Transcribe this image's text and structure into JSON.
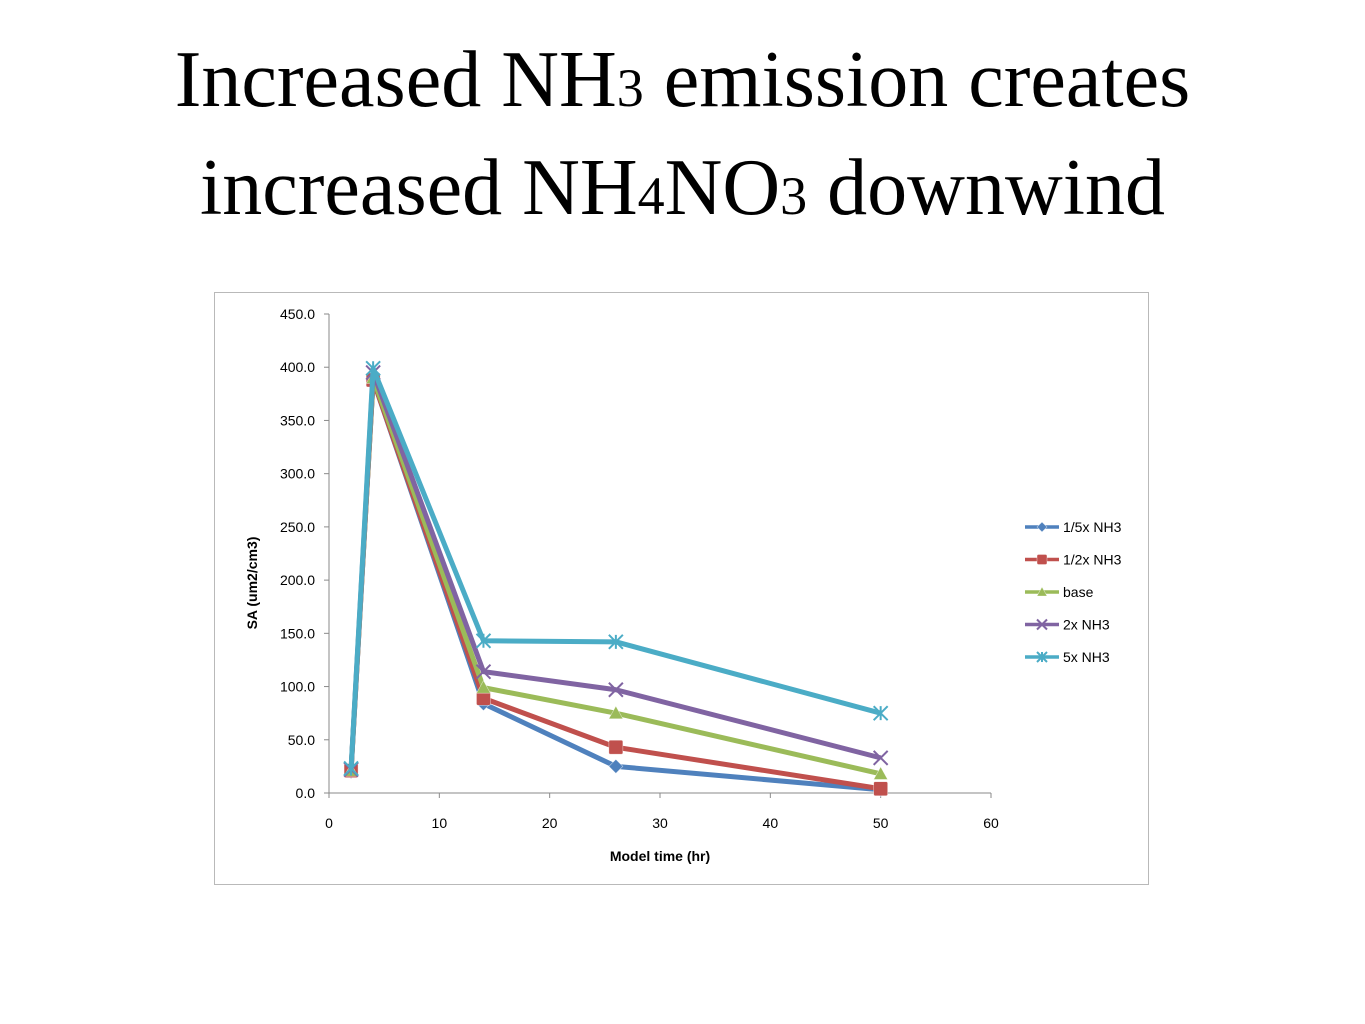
{
  "slide": {
    "title_line1": {
      "pre": "Increased NH",
      "sub1": "3",
      "post": " emission creates"
    },
    "title_line2": {
      "pre": "increased NH",
      "sub1": "4",
      "mid": "NO",
      "sub2": "3",
      "post": " downwind"
    }
  },
  "chart_data": {
    "type": "line",
    "title": "",
    "xlabel": "Model time (hr)",
    "ylabel": "SA (um2/cm3)",
    "xlim": [
      0,
      60
    ],
    "ylim": [
      0,
      450
    ],
    "x_ticks": [
      0,
      10,
      20,
      30,
      40,
      50,
      60
    ],
    "y_ticks": [
      "0.0",
      "50.0",
      "100.0",
      "150.0",
      "200.0",
      "250.0",
      "300.0",
      "350.0",
      "400.0",
      "450.0"
    ],
    "grid": false,
    "legend_position": "right",
    "x": [
      2,
      4,
      14,
      26,
      50
    ],
    "series": [
      {
        "name": "1/5x NH3",
        "color": "#4f81bd",
        "marker": "diamond",
        "values": [
          20,
          388,
          84,
          25,
          3
        ]
      },
      {
        "name": "1/2x NH3",
        "color": "#c0504d",
        "marker": "square",
        "values": [
          21,
          388,
          89,
          43,
          4
        ]
      },
      {
        "name": "base",
        "color": "#9bbb59",
        "marker": "triangle",
        "values": [
          21,
          390,
          99,
          75,
          18
        ]
      },
      {
        "name": "2x NH3",
        "color": "#8064a2",
        "marker": "x",
        "values": [
          22,
          395,
          114,
          97,
          33
        ]
      },
      {
        "name": "5x NH3",
        "color": "#4bacc6",
        "marker": "star",
        "values": [
          23,
          399,
          143,
          142,
          75
        ]
      }
    ]
  }
}
